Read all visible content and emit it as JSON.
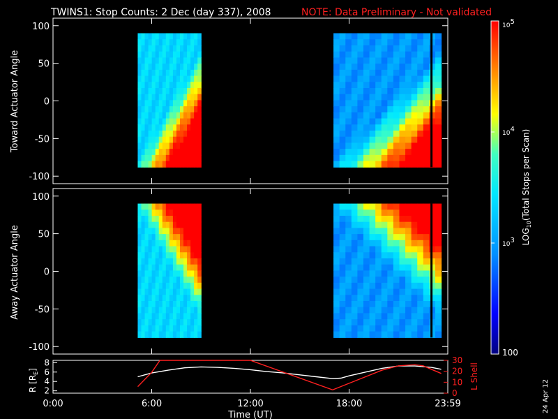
{
  "header": {
    "title": "TWINS1: Stop Counts:  2 Dec (day 337), 2008",
    "note": "NOTE: Data Preliminary - Not validated"
  },
  "footer": {
    "date_stamp": "24 Apr 12"
  },
  "colors": {
    "background": "#000000",
    "axes": "#ffffff",
    "note": "#ff2020",
    "r_line": "#ffffff",
    "l_line": "#ff2020"
  },
  "chart_data": [
    {
      "type": "heatmap",
      "title": "",
      "xlabel": "",
      "ylabel": "Toward Actuator Angle",
      "xlim": [
        0,
        24
      ],
      "ylim": [
        -110,
        110
      ],
      "y_ticks": [
        100,
        50,
        0,
        -50,
        -100
      ],
      "y_tick_labels": [
        "100",
        "50",
        "0",
        "-50",
        "-100"
      ],
      "data_blocks": [
        {
          "t_start": 5.15,
          "t_end": 9.0,
          "angle_min": -88,
          "angle_max": 90
        },
        {
          "t_start": 17.05,
          "t_end": 23.6,
          "angle_min": -88,
          "angle_max": 90
        }
      ]
    },
    {
      "type": "heatmap",
      "title": "",
      "xlabel": "",
      "ylabel": "Away Actuator Angle",
      "xlim": [
        0,
        24
      ],
      "ylim": [
        -110,
        110
      ],
      "y_ticks": [
        100,
        50,
        0,
        -50,
        -100
      ],
      "y_tick_labels": [
        "100",
        "50",
        "0",
        "-50",
        "-100"
      ],
      "data_blocks": [
        {
          "t_start": 5.15,
          "t_end": 9.0,
          "angle_min": -88,
          "angle_max": 90
        },
        {
          "t_start": 17.05,
          "t_end": 23.6,
          "angle_min": -88,
          "angle_max": 90
        }
      ]
    },
    {
      "type": "line",
      "title": "",
      "xlabel": "Time (UT)",
      "ylabel": "R [R",
      "ylabel_sub": "E",
      "ylabel_close": "]",
      "y2label": "L Shell",
      "xlim": [
        0,
        24
      ],
      "ylim": [
        1.5,
        8.5
      ],
      "y2lim": [
        0,
        30
      ],
      "x_ticks": [
        0,
        6,
        12,
        18,
        24
      ],
      "x_tick_labels": [
        "0:00",
        "6:00",
        "12:00",
        "18:00",
        "23:59"
      ],
      "y_ticks": [
        2,
        4,
        6,
        8
      ],
      "y_tick_labels": [
        "2",
        "4",
        "6",
        "8"
      ],
      "y2_ticks": [
        0,
        10,
        20,
        30
      ],
      "y2_tick_labels": [
        "0",
        "10",
        "20",
        "30"
      ],
      "series": [
        {
          "x": [
            5.15,
            6.0,
            7.0,
            8.0,
            9.0,
            10.0,
            11.0,
            12.0,
            13.0,
            14.0,
            15.0,
            16.0,
            17.0,
            17.5,
            18.0,
            19.0,
            20.0,
            21.0,
            22.0,
            23.0,
            23.6
          ],
          "y": [
            5.0,
            5.8,
            6.4,
            6.9,
            7.1,
            7.0,
            6.8,
            6.5,
            6.1,
            5.8,
            5.4,
            5.0,
            4.6,
            4.7,
            5.2,
            6.0,
            6.8,
            7.3,
            7.3,
            7.0,
            6.6
          ]
        },
        {
          "x": [
            5.15,
            6.0,
            6.5,
            12.0,
            17.0,
            18.0,
            19.0,
            20.0,
            21.0,
            22.0,
            22.5,
            23.6
          ],
          "y": [
            6,
            19,
            30,
            30,
            3,
            9,
            15,
            21,
            25,
            26,
            25,
            18
          ]
        }
      ]
    }
  ],
  "colorbar": {
    "label": "LOG",
    "label_sub": "10",
    "label_rest": "(Total Stops per Scan)",
    "scale": "log",
    "range": [
      100,
      100000
    ],
    "ticks": [
      {
        "value": 100000,
        "base": "10",
        "exp": "5"
      },
      {
        "value": 10000,
        "base": "10",
        "exp": "4"
      },
      {
        "value": 1000,
        "base": "10",
        "exp": "3"
      },
      {
        "value": 100,
        "base": "100",
        "exp": ""
      }
    ]
  }
}
